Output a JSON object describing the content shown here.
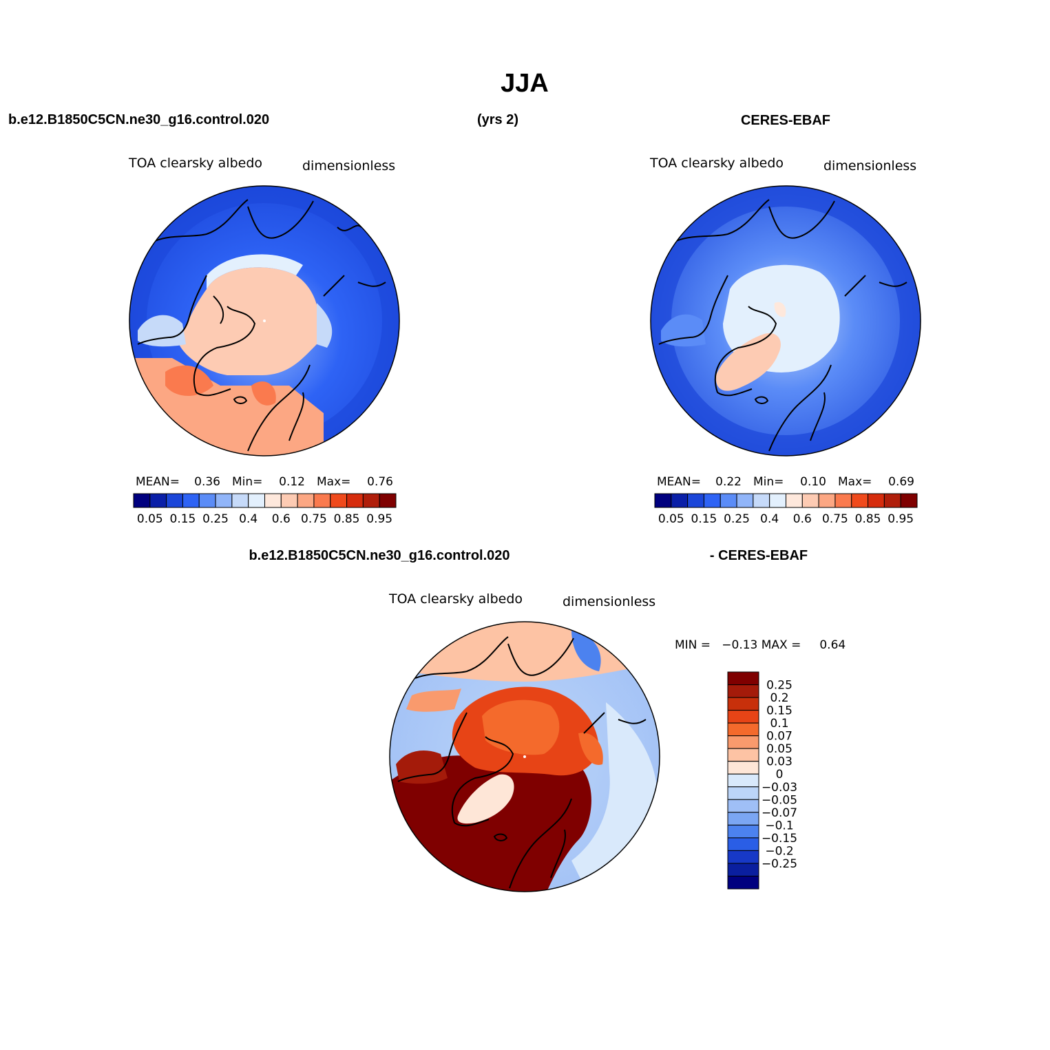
{
  "page": {
    "title": "JJA",
    "case_name": "b.e12.B1850C5CN.ne30_g16.control.020",
    "years": "(yrs 2)",
    "obs_name": "CERES-EBAF",
    "diff_case": "b.e12.B1850C5CN.ne30_g16.control.020",
    "diff_obs": "- CERES-EBAF"
  },
  "colors": {
    "abs_scale": [
      "#00007f",
      "#0a1fa8",
      "#1b46d9",
      "#2e63f5",
      "#5b8cf7",
      "#91b5f9",
      "#c6daf9",
      "#e3f0fd",
      "#fee8dc",
      "#fdcbb3",
      "#fca783",
      "#fa7a4e",
      "#f04a1c",
      "#d62c0d",
      "#b01e0a",
      "#7f0000"
    ],
    "diff_scale": [
      "#7f0000",
      "#a41b0a",
      "#c8300b",
      "#e74416",
      "#f46a2c",
      "#f99a6d",
      "#fdc3a4",
      "#fee6d7",
      "#d9e9fb",
      "#bcd5f8",
      "#9fbff6",
      "#7ba6f3",
      "#4c82ef",
      "#2a5ee6",
      "#1739c7",
      "#0a1f9f",
      "#00007f"
    ],
    "land_outline": "#000000"
  },
  "panels": [
    {
      "id": "model",
      "left_label": "TOA clearsky albedo",
      "right_label": "dimensionless",
      "stats": {
        "mean_label": "MEAN=",
        "mean": "0.36",
        "min_label": "Min=",
        "min": "0.12",
        "max_label": "Max=",
        "max": "0.76"
      },
      "colorbar_labels": [
        "0.05",
        "0.15",
        "0.25",
        "0.4",
        "0.6",
        "0.75",
        "0.85",
        "0.95"
      ]
    },
    {
      "id": "obs",
      "left_label": "TOA clearsky albedo",
      "right_label": "dimensionless",
      "stats": {
        "mean_label": "MEAN=",
        "mean": "0.22",
        "min_label": "Min=",
        "min": "0.10",
        "max_label": "Max=",
        "max": "0.69"
      },
      "colorbar_labels": [
        "0.05",
        "0.15",
        "0.25",
        "0.4",
        "0.6",
        "0.75",
        "0.85",
        "0.95"
      ]
    },
    {
      "id": "diff",
      "left_label": "TOA clearsky albedo",
      "right_label": "dimensionless",
      "minmax": "MIN =   −0.13 MAX =     0.64",
      "colorbar_labels": [
        "0.25",
        "0.2",
        "0.15",
        "0.1",
        "0.07",
        "0.05",
        "0.03",
        "0",
        "−0.03",
        "−0.05",
        "−0.07",
        "−0.1",
        "−0.15",
        "−0.2",
        "−0.25"
      ]
    }
  ]
}
